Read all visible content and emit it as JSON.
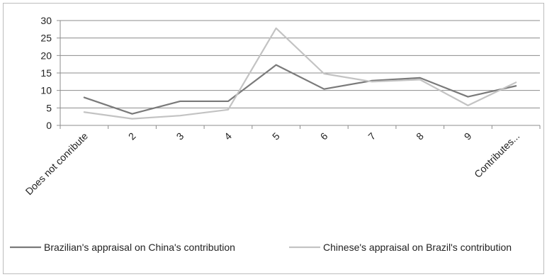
{
  "chart_data": {
    "type": "line",
    "title": "",
    "xlabel": "",
    "ylabel": "",
    "categories": [
      "Does not conribute",
      "2",
      "3",
      "4",
      "5",
      "6",
      "7",
      "8",
      "9",
      "Contributes..."
    ],
    "ylim": [
      0,
      30
    ],
    "yticks": [
      0,
      5,
      10,
      15,
      20,
      25,
      30
    ],
    "grid": true,
    "legend_position": "bottom",
    "series": [
      {
        "name": "Brazilian's appraisal on China's contribution",
        "color": "#7a7a7a",
        "values": [
          8.0,
          3.3,
          6.9,
          6.9,
          17.3,
          10.4,
          12.8,
          13.6,
          8.2,
          11.3
        ]
      },
      {
        "name": "Chinese's appraisal on Brazil's contribution",
        "color": "#c3c3c3",
        "values": [
          3.8,
          1.9,
          2.8,
          4.5,
          27.8,
          14.8,
          12.5,
          13.1,
          5.7,
          12.3
        ]
      }
    ]
  }
}
